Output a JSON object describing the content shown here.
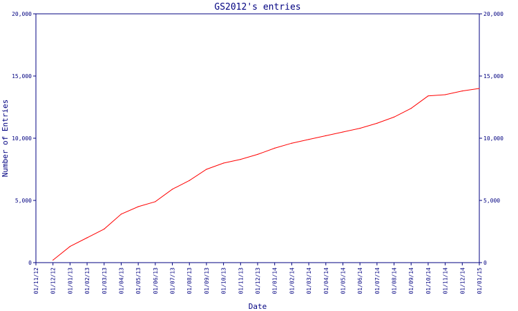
{
  "chart_data": {
    "type": "line",
    "title": "GS2012's entries",
    "xlabel": "Date",
    "ylabel": "Number of Entries",
    "ylim": [
      0,
      20000
    ],
    "y_ticks": [
      {
        "value": 0,
        "label": "0"
      },
      {
        "value": 5000,
        "label": "5,000"
      },
      {
        "value": 10000,
        "label": "10,000"
      },
      {
        "value": 15000,
        "label": "15,000"
      },
      {
        "value": 20000,
        "label": "20,000"
      }
    ],
    "x_ticks": [
      "01/11/12",
      "01/12/12",
      "01/01/13",
      "01/02/13",
      "01/03/13",
      "01/04/13",
      "01/05/13",
      "01/06/13",
      "01/07/13",
      "01/08/13",
      "01/09/13",
      "01/10/13",
      "01/11/13",
      "01/12/13",
      "01/01/14",
      "01/02/14",
      "01/03/14",
      "01/04/14",
      "01/05/14",
      "01/06/14",
      "01/07/14",
      "01/08/14",
      "01/09/14",
      "01/10/14",
      "01/11/14",
      "01/12/14",
      "01/01/15"
    ],
    "grid": false,
    "series": [
      {
        "color": "#ff0000",
        "points": [
          [
            "01/12/12",
            200
          ],
          [
            "01/01/13",
            1300
          ],
          [
            "01/02/13",
            2000
          ],
          [
            "01/03/13",
            2700
          ],
          [
            "01/04/13",
            3900
          ],
          [
            "01/05/13",
            4500
          ],
          [
            "01/06/13",
            4900
          ],
          [
            "01/07/13",
            5900
          ],
          [
            "01/08/13",
            6600
          ],
          [
            "01/09/13",
            7500
          ],
          [
            "01/10/13",
            8000
          ],
          [
            "01/11/13",
            8300
          ],
          [
            "01/12/13",
            8700
          ],
          [
            "01/01/14",
            9200
          ],
          [
            "01/02/14",
            9600
          ],
          [
            "01/03/14",
            9900
          ],
          [
            "01/04/14",
            10200
          ],
          [
            "01/05/14",
            10500
          ],
          [
            "01/06/14",
            10800
          ],
          [
            "01/07/14",
            11200
          ],
          [
            "01/08/14",
            11700
          ],
          [
            "01/09/14",
            12400
          ],
          [
            "01/10/14",
            13400
          ],
          [
            "01/11/14",
            13500
          ],
          [
            "01/12/14",
            13800
          ],
          [
            "01/01/15",
            14000
          ]
        ]
      }
    ]
  }
}
